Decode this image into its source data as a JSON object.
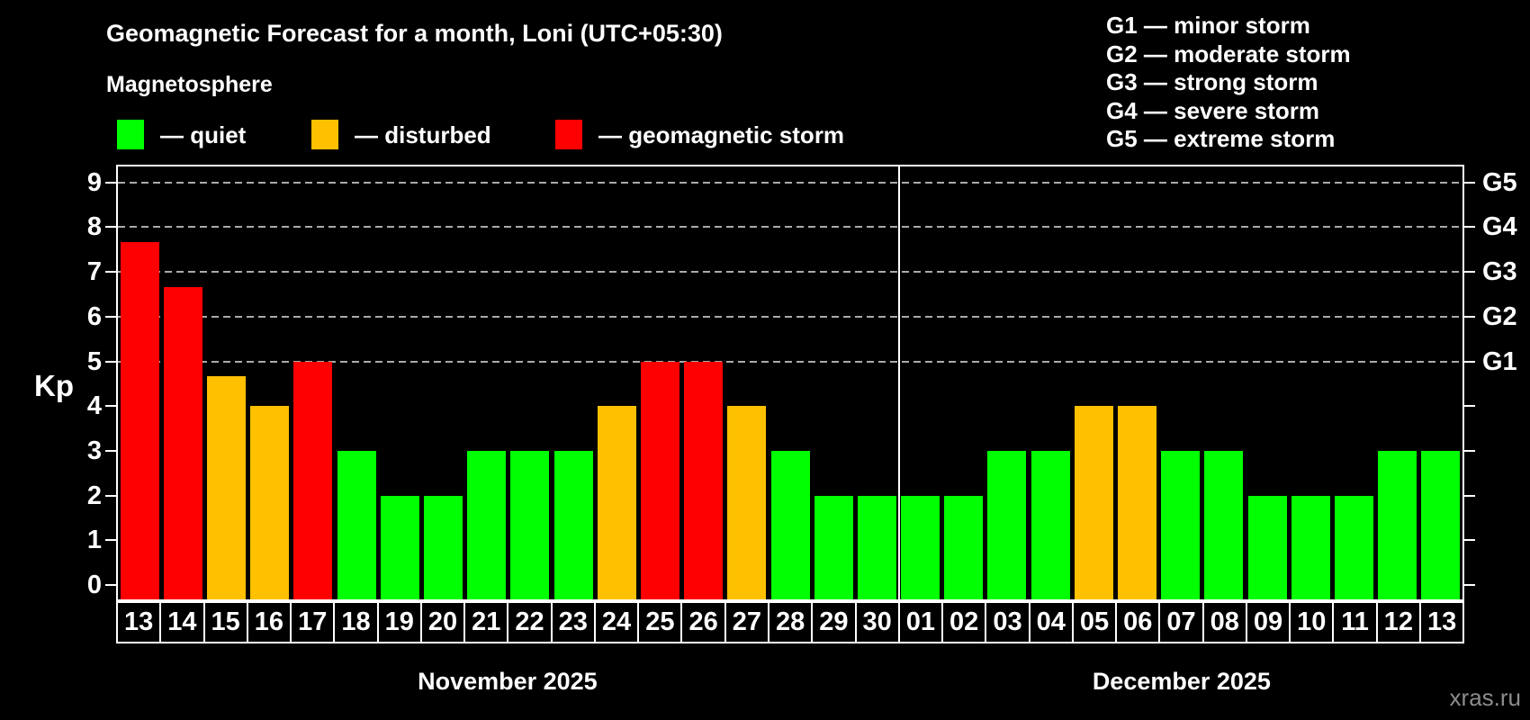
{
  "header": {
    "title": "Geomagnetic Forecast for a month, Loni (UTC+05:30)",
    "subtitle": "Magnetosphere"
  },
  "legend": {
    "items": [
      {
        "status": "quiet",
        "label": "— quiet"
      },
      {
        "status": "disturbed",
        "label": "— disturbed"
      },
      {
        "status": "storm",
        "label": "— geomagnetic storm"
      }
    ]
  },
  "g_scale_legend": {
    "lines": [
      "G1 — minor storm",
      "G2 — moderate storm",
      "G3 — strong storm",
      "G4 — severe storm",
      "G5 — extreme storm"
    ]
  },
  "colors": {
    "quiet": "#00ff00",
    "disturbed": "#ffc000",
    "storm": "#ff0000",
    "frame": "#ffffff",
    "grid": "#aaaaaa",
    "watermark": "#8c8c8c",
    "background": "#000000"
  },
  "watermark": "xras.ru",
  "chart_data": {
    "type": "bar",
    "title": "Geomagnetic Forecast for a month, Loni (UTC+05:30)",
    "ylabel": "Kp",
    "ylim": [
      -0.4,
      9.4
    ],
    "yticks": [
      0,
      1,
      2,
      3,
      4,
      5,
      6,
      7,
      8,
      9
    ],
    "gridlines": [
      5,
      6,
      7,
      8,
      9
    ],
    "grid_style": "dashed horizontal gray lines at Kp 5 through 9 only",
    "legend_position": "top-left",
    "right_axis_labels": [
      {
        "value": 5,
        "label": "G1"
      },
      {
        "value": 6,
        "label": "G2"
      },
      {
        "value": 7,
        "label": "G3"
      },
      {
        "value": 8,
        "label": "G4"
      },
      {
        "value": 9,
        "label": "G5"
      }
    ],
    "months": [
      {
        "label": "November 2025",
        "bars": [
          {
            "day": "13",
            "kp": 7.67,
            "status": "storm"
          },
          {
            "day": "14",
            "kp": 6.67,
            "status": "storm"
          },
          {
            "day": "15",
            "kp": 4.67,
            "status": "disturbed"
          },
          {
            "day": "16",
            "kp": 4,
            "status": "disturbed"
          },
          {
            "day": "17",
            "kp": 5,
            "status": "storm"
          },
          {
            "day": "18",
            "kp": 3,
            "status": "quiet"
          },
          {
            "day": "19",
            "kp": 2,
            "status": "quiet"
          },
          {
            "day": "20",
            "kp": 2,
            "status": "quiet"
          },
          {
            "day": "21",
            "kp": 3,
            "status": "quiet"
          },
          {
            "day": "22",
            "kp": 3,
            "status": "quiet"
          },
          {
            "day": "23",
            "kp": 3,
            "status": "quiet"
          },
          {
            "day": "24",
            "kp": 4,
            "status": "disturbed"
          },
          {
            "day": "25",
            "kp": 5,
            "status": "storm"
          },
          {
            "day": "26",
            "kp": 5,
            "status": "storm"
          },
          {
            "day": "27",
            "kp": 4,
            "status": "disturbed"
          },
          {
            "day": "28",
            "kp": 3,
            "status": "quiet"
          },
          {
            "day": "29",
            "kp": 2,
            "status": "quiet"
          },
          {
            "day": "30",
            "kp": 2,
            "status": "quiet"
          }
        ]
      },
      {
        "label": "December 2025",
        "bars": [
          {
            "day": "01",
            "kp": 2,
            "status": "quiet"
          },
          {
            "day": "02",
            "kp": 2,
            "status": "quiet"
          },
          {
            "day": "03",
            "kp": 3,
            "status": "quiet"
          },
          {
            "day": "04",
            "kp": 3,
            "status": "quiet"
          },
          {
            "day": "05",
            "kp": 4,
            "status": "disturbed"
          },
          {
            "day": "06",
            "kp": 4,
            "status": "disturbed"
          },
          {
            "day": "07",
            "kp": 3,
            "status": "quiet"
          },
          {
            "day": "08",
            "kp": 3,
            "status": "quiet"
          },
          {
            "day": "09",
            "kp": 2,
            "status": "quiet"
          },
          {
            "day": "10",
            "kp": 2,
            "status": "quiet"
          },
          {
            "day": "11",
            "kp": 2,
            "status": "quiet"
          },
          {
            "day": "12",
            "kp": 3,
            "status": "quiet"
          },
          {
            "day": "13",
            "kp": 3,
            "status": "quiet"
          }
        ]
      }
    ]
  }
}
